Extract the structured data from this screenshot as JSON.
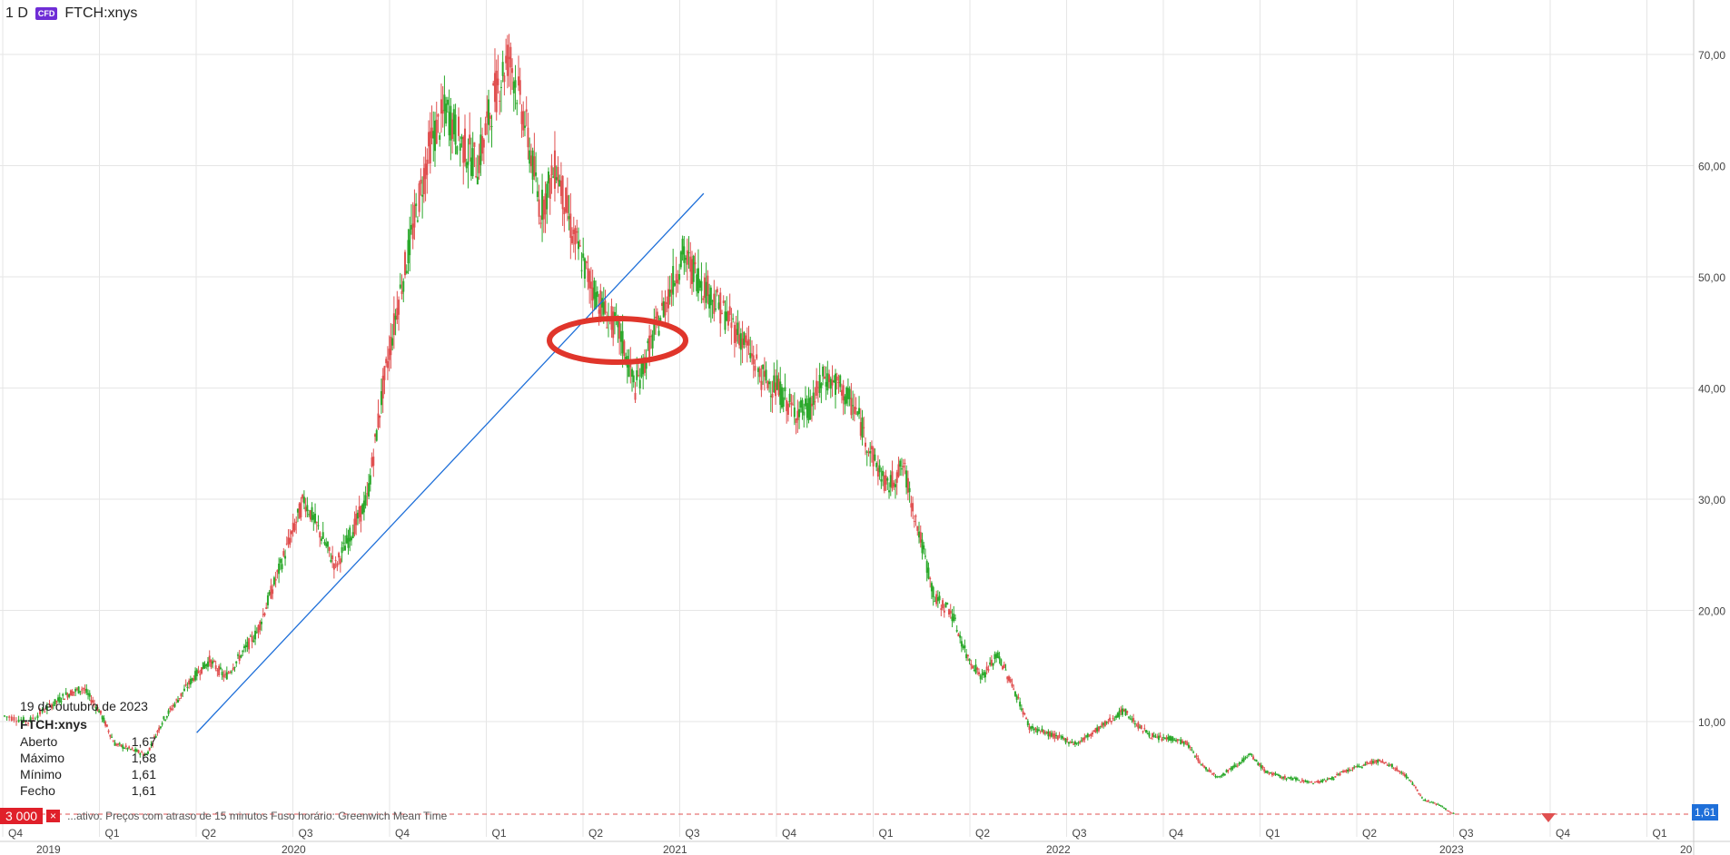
{
  "header": {
    "interval": "1 D",
    "badge": "CFD",
    "symbol": "FTCH:xnys"
  },
  "tooltip": {
    "date": "19 de outubro de 2023",
    "symbol": "FTCH:xnys",
    "rows": [
      {
        "label": "Aberto",
        "value": "1,67"
      },
      {
        "label": "Máximo",
        "value": "1,68"
      },
      {
        "label": "Mínimo",
        "value": "1,61"
      },
      {
        "label": "Fecho",
        "value": "1,61"
      }
    ]
  },
  "footer": {
    "volume": "3 000",
    "close": "×",
    "note": "...ativo. Preços com atraso de 15 minutos   Fuso horário: Greenwich Mean Time"
  },
  "last_price_label": "1,61",
  "colors": {
    "up": "#2aa82a",
    "down": "#e05050",
    "trend": "#1e6fd9",
    "circle": "#e0352b",
    "grid": "#e6e6e6",
    "last_line": "#e05050"
  },
  "chart_data": {
    "type": "line",
    "title": "",
    "xlabel": "",
    "ylabel": "",
    "y_ticks": [
      "70,00",
      "60,00",
      "50,00",
      "40,00",
      "30,00",
      "20,00",
      "10,00"
    ],
    "ylim": [
      0,
      75
    ],
    "quarter_labels": [
      "Q4",
      "Q1",
      "Q2",
      "Q3",
      "Q4",
      "Q1",
      "Q2",
      "Q3",
      "Q4",
      "Q1",
      "Q2",
      "Q3",
      "Q4",
      "Q1",
      "Q2",
      "Q3",
      "Q4",
      "Q1"
    ],
    "year_labels": [
      "2019",
      "2020",
      "2021",
      "2022",
      "2023",
      "20"
    ],
    "series": [
      {
        "values": [
          [
            0,
            10.5
          ],
          [
            3,
            10
          ],
          [
            6,
            11.5
          ],
          [
            8,
            12.5
          ],
          [
            10,
            13
          ],
          [
            12,
            11
          ],
          [
            14,
            8
          ],
          [
            16,
            7.5
          ],
          [
            18,
            7
          ],
          [
            20,
            10
          ],
          [
            22,
            12
          ],
          [
            24,
            14
          ],
          [
            26,
            15.5
          ],
          [
            28,
            14
          ],
          [
            30,
            16
          ],
          [
            32,
            18
          ],
          [
            34,
            22
          ],
          [
            36,
            26
          ],
          [
            38,
            30
          ],
          [
            40,
            27
          ],
          [
            42,
            24
          ],
          [
            44,
            27
          ],
          [
            46,
            30
          ],
          [
            48,
            40
          ],
          [
            50,
            48
          ],
          [
            52,
            55
          ],
          [
            54,
            62
          ],
          [
            56,
            65
          ],
          [
            58,
            62
          ],
          [
            60,
            60
          ],
          [
            62,
            66
          ],
          [
            64,
            70
          ],
          [
            66,
            64
          ],
          [
            68,
            56
          ],
          [
            70,
            60
          ],
          [
            72,
            54
          ],
          [
            74,
            50
          ],
          [
            76,
            47
          ],
          [
            78,
            45
          ],
          [
            80,
            40
          ],
          [
            82,
            44
          ],
          [
            84,
            48
          ],
          [
            86,
            52
          ],
          [
            88,
            50
          ],
          [
            90,
            48
          ],
          [
            92,
            46
          ],
          [
            94,
            44
          ],
          [
            96,
            41
          ],
          [
            98,
            40
          ],
          [
            100,
            38
          ],
          [
            102,
            38
          ],
          [
            104,
            41
          ],
          [
            106,
            40
          ],
          [
            108,
            38
          ],
          [
            110,
            34
          ],
          [
            112,
            31
          ],
          [
            114,
            33
          ],
          [
            116,
            27
          ],
          [
            118,
            21
          ],
          [
            120,
            20
          ],
          [
            122,
            16
          ],
          [
            124,
            14
          ],
          [
            126,
            16
          ],
          [
            128,
            13
          ],
          [
            130,
            9.5
          ],
          [
            132,
            9
          ],
          [
            134,
            8.5
          ],
          [
            136,
            8
          ],
          [
            138,
            9
          ],
          [
            140,
            10
          ],
          [
            142,
            11
          ],
          [
            144,
            9.5
          ],
          [
            146,
            8.5
          ],
          [
            148,
            8.5
          ],
          [
            150,
            8
          ],
          [
            152,
            6
          ],
          [
            154,
            5
          ],
          [
            156,
            6
          ],
          [
            158,
            7
          ],
          [
            160,
            5.5
          ],
          [
            162,
            5
          ],
          [
            164,
            4.8
          ],
          [
            166,
            4.5
          ],
          [
            168,
            4.8
          ],
          [
            170,
            5.5
          ],
          [
            172,
            6
          ],
          [
            174,
            6.5
          ],
          [
            176,
            6
          ],
          [
            178,
            5
          ],
          [
            180,
            3
          ],
          [
            182,
            2.5
          ],
          [
            184,
            1.61
          ]
        ]
      }
    ],
    "trendline": [
      [
        20,
        9
      ],
      [
        82,
        57.5
      ]
    ],
    "last_price": 1.61,
    "annotation": "red-ellipse"
  }
}
